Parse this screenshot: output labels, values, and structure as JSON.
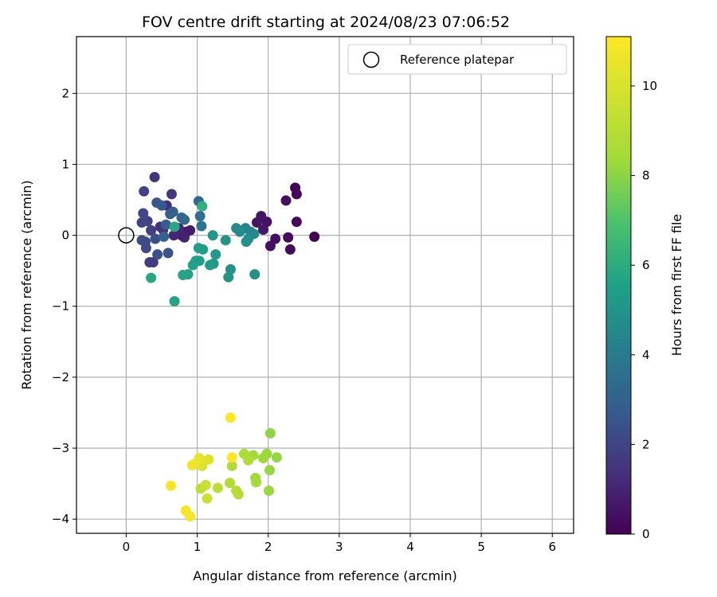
{
  "chart_data": {
    "type": "scatter",
    "title": "FOV centre drift starting at 2024/08/23 07:06:52",
    "xlabel": "Angular distance from reference (arcmin)",
    "ylabel": "Rotation from reference (arcmin)",
    "xlim": [
      -0.7,
      6.3
    ],
    "ylim": [
      -4.2,
      2.8
    ],
    "xticks": [
      "0",
      "1",
      "2",
      "3",
      "4",
      "5",
      "6"
    ],
    "xtick_values": [
      0,
      1,
      2,
      3,
      4,
      5,
      6
    ],
    "yticks": [
      "2",
      "1",
      "0",
      "−1",
      "−2",
      "−3",
      "−4"
    ],
    "ytick_values": [
      2,
      1,
      0,
      -1,
      -2,
      -3,
      -4
    ],
    "grid": true,
    "legend": {
      "placement": "upper-right",
      "entries": [
        "Reference platepar"
      ]
    },
    "reference_point": {
      "x": 0,
      "y": 0,
      "label": "Reference platepar"
    },
    "colorbar": {
      "label": "Hours from first FF file",
      "range": [
        0,
        11.1
      ],
      "ticks": [
        "0",
        "2",
        "4",
        "6",
        "8",
        "10"
      ],
      "tick_values": [
        0,
        2,
        4,
        6,
        8,
        10
      ],
      "colormap": "viridis"
    },
    "points": [
      {
        "x": 2.65,
        "y": -0.02,
        "h": 0.0
      },
      {
        "x": 2.38,
        "y": 0.67,
        "h": 0.1
      },
      {
        "x": 2.4,
        "y": 0.58,
        "h": 0.2
      },
      {
        "x": 2.4,
        "y": 0.19,
        "h": 0.2
      },
      {
        "x": 2.31,
        "y": -0.2,
        "h": 0.3
      },
      {
        "x": 2.28,
        "y": -0.03,
        "h": 0.3
      },
      {
        "x": 2.25,
        "y": 0.49,
        "h": 0.4
      },
      {
        "x": 2.1,
        "y": -0.05,
        "h": 0.4
      },
      {
        "x": 2.03,
        "y": -0.15,
        "h": 0.5
      },
      {
        "x": 1.98,
        "y": 0.19,
        "h": 0.5
      },
      {
        "x": 1.9,
        "y": 0.27,
        "h": 0.6
      },
      {
        "x": 1.84,
        "y": 0.18,
        "h": 0.6
      },
      {
        "x": 1.93,
        "y": 0.08,
        "h": 0.7
      },
      {
        "x": 0.85,
        "y": 0.05,
        "h": 0.8
      },
      {
        "x": 0.9,
        "y": 0.07,
        "h": 0.9
      },
      {
        "x": 0.78,
        "y": 0.0,
        "h": 1.0
      },
      {
        "x": 0.82,
        "y": -0.03,
        "h": 1.1
      },
      {
        "x": 0.74,
        "y": 0.1,
        "h": 1.2
      },
      {
        "x": 0.67,
        "y": 0.0,
        "h": 1.3
      },
      {
        "x": 0.57,
        "y": 0.42,
        "h": 1.4
      },
      {
        "x": 0.52,
        "y": 0.08,
        "h": 1.5
      },
      {
        "x": 0.48,
        "y": 0.12,
        "h": 1.6
      },
      {
        "x": 0.4,
        "y": 0.82,
        "h": 1.7
      },
      {
        "x": 0.64,
        "y": 0.58,
        "h": 1.8
      },
      {
        "x": 0.38,
        "y": -0.38,
        "h": 1.9
      },
      {
        "x": 0.33,
        "y": -0.38,
        "h": 2.0
      },
      {
        "x": 0.35,
        "y": 0.07,
        "h": 2.1
      },
      {
        "x": 0.3,
        "y": 0.2,
        "h": 2.2
      },
      {
        "x": 0.25,
        "y": 0.62,
        "h": 2.2
      },
      {
        "x": 0.22,
        "y": 0.18,
        "h": 2.3
      },
      {
        "x": 0.24,
        "y": 0.31,
        "h": 2.4
      },
      {
        "x": 0.27,
        "y": -0.09,
        "h": 2.5
      },
      {
        "x": 0.28,
        "y": -0.18,
        "h": 2.5
      },
      {
        "x": 0.22,
        "y": -0.07,
        "h": 2.6
      },
      {
        "x": 0.41,
        "y": -0.05,
        "h": 2.7
      },
      {
        "x": 0.44,
        "y": -0.27,
        "h": 2.8
      },
      {
        "x": 0.59,
        "y": -0.25,
        "h": 2.9
      },
      {
        "x": 0.43,
        "y": 0.46,
        "h": 3.0
      },
      {
        "x": 0.5,
        "y": 0.42,
        "h": 3.1
      },
      {
        "x": 0.56,
        "y": 0.15,
        "h": 3.2
      },
      {
        "x": 0.62,
        "y": 0.3,
        "h": 3.3
      },
      {
        "x": 0.53,
        "y": -0.02,
        "h": 3.4
      },
      {
        "x": 0.66,
        "y": 0.33,
        "h": 3.5
      },
      {
        "x": 0.78,
        "y": 0.25,
        "h": 3.6
      },
      {
        "x": 0.82,
        "y": 0.22,
        "h": 3.7
      },
      {
        "x": 1.02,
        "y": 0.48,
        "h": 3.8
      },
      {
        "x": 1.04,
        "y": 0.27,
        "h": 4.0
      },
      {
        "x": 1.06,
        "y": 0.13,
        "h": 4.2
      },
      {
        "x": 1.68,
        "y": 0.1,
        "h": 4.8
      },
      {
        "x": 1.75,
        "y": 0.05,
        "h": 5.0
      },
      {
        "x": 1.8,
        "y": 0.02,
        "h": 5.2
      },
      {
        "x": 1.55,
        "y": 0.1,
        "h": 5.3
      },
      {
        "x": 1.6,
        "y": 0.05,
        "h": 5.4
      },
      {
        "x": 1.72,
        "y": -0.05,
        "h": 5.5
      },
      {
        "x": 1.69,
        "y": -0.09,
        "h": 5.6
      },
      {
        "x": 1.81,
        "y": -0.55,
        "h": 5.6
      },
      {
        "x": 1.47,
        "y": -0.48,
        "h": 5.7
      },
      {
        "x": 1.44,
        "y": -0.59,
        "h": 5.8
      },
      {
        "x": 1.4,
        "y": -0.07,
        "h": 5.8
      },
      {
        "x": 1.22,
        "y": 0.0,
        "h": 5.9
      },
      {
        "x": 1.26,
        "y": -0.27,
        "h": 6.0
      },
      {
        "x": 1.23,
        "y": -0.4,
        "h": 6.0
      },
      {
        "x": 1.18,
        "y": -0.42,
        "h": 6.1
      },
      {
        "x": 1.08,
        "y": -0.2,
        "h": 6.2
      },
      {
        "x": 1.02,
        "y": -0.18,
        "h": 6.2
      },
      {
        "x": 1.03,
        "y": -0.36,
        "h": 6.3
      },
      {
        "x": 0.98,
        "y": -0.36,
        "h": 6.3
      },
      {
        "x": 0.94,
        "y": -0.42,
        "h": 6.4
      },
      {
        "x": 0.87,
        "y": -0.55,
        "h": 6.4
      },
      {
        "x": 0.8,
        "y": -0.56,
        "h": 6.5
      },
      {
        "x": 0.68,
        "y": -0.93,
        "h": 6.5
      },
      {
        "x": 0.35,
        "y": -0.6,
        "h": 6.6
      },
      {
        "x": 0.68,
        "y": 0.12,
        "h": 6.6
      },
      {
        "x": 1.07,
        "y": 0.41,
        "h": 7.0
      },
      {
        "x": 2.03,
        "y": -2.79,
        "h": 9.2
      },
      {
        "x": 2.12,
        "y": -3.13,
        "h": 9.3
      },
      {
        "x": 2.02,
        "y": -3.31,
        "h": 9.3
      },
      {
        "x": 2.01,
        "y": -3.6,
        "h": 9.4
      },
      {
        "x": 1.98,
        "y": -3.08,
        "h": 9.4
      },
      {
        "x": 1.93,
        "y": -3.14,
        "h": 9.5
      },
      {
        "x": 1.82,
        "y": -3.42,
        "h": 9.5
      },
      {
        "x": 1.83,
        "y": -3.48,
        "h": 9.6
      },
      {
        "x": 1.79,
        "y": -3.1,
        "h": 9.6
      },
      {
        "x": 1.72,
        "y": -3.17,
        "h": 9.7
      },
      {
        "x": 1.66,
        "y": -3.08,
        "h": 9.7
      },
      {
        "x": 1.49,
        "y": -3.25,
        "h": 9.8
      },
      {
        "x": 1.46,
        "y": -3.49,
        "h": 9.8
      },
      {
        "x": 1.55,
        "y": -3.6,
        "h": 9.9
      },
      {
        "x": 1.58,
        "y": -3.65,
        "h": 9.9
      },
      {
        "x": 1.29,
        "y": -3.56,
        "h": 10.0
      },
      {
        "x": 1.05,
        "y": -3.57,
        "h": 10.0
      },
      {
        "x": 1.12,
        "y": -3.52,
        "h": 10.2
      },
      {
        "x": 1.14,
        "y": -3.71,
        "h": 10.3
      },
      {
        "x": 1.07,
        "y": -3.25,
        "h": 10.5
      },
      {
        "x": 1.16,
        "y": -3.16,
        "h": 10.6
      },
      {
        "x": 1.03,
        "y": -3.14,
        "h": 10.7
      },
      {
        "x": 0.97,
        "y": -3.22,
        "h": 10.8
      },
      {
        "x": 0.93,
        "y": -3.24,
        "h": 10.9
      },
      {
        "x": 0.63,
        "y": -3.53,
        "h": 11.0
      },
      {
        "x": 0.84,
        "y": -3.88,
        "h": 11.0
      },
      {
        "x": 0.9,
        "y": -3.96,
        "h": 11.0
      },
      {
        "x": 1.49,
        "y": -3.13,
        "h": 11.1
      },
      {
        "x": 1.47,
        "y": -2.57,
        "h": 11.1
      }
    ]
  }
}
